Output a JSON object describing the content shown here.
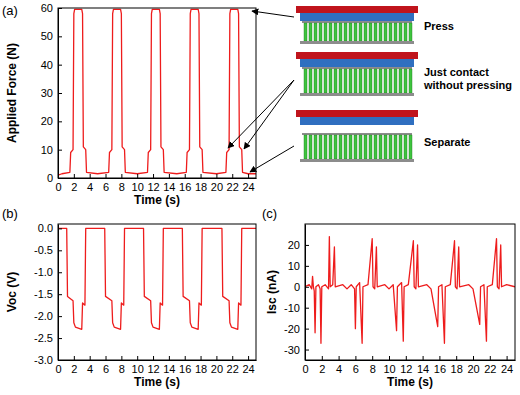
{
  "chart_data": [
    {
      "type": "line",
      "title": "(a)",
      "x_label": "Time (s)",
      "y_label": "Applied Force (N)",
      "color": "#ee1c1c",
      "xlim": [
        0,
        25
      ],
      "xticks": [
        0,
        2,
        4,
        6,
        8,
        10,
        12,
        14,
        16,
        18,
        20,
        22,
        24
      ],
      "ylim": [
        0,
        60
      ],
      "yticks": [
        0,
        10,
        20,
        30,
        40,
        50,
        60
      ],
      "x": [
        0,
        0.5,
        1.5,
        1.6,
        1.9,
        2.0,
        2.1,
        3.0,
        3.1,
        3.2,
        3.5,
        3.6,
        5.0,
        6.4,
        6.5,
        6.8,
        6.9,
        7.0,
        7.9,
        8.0,
        8.1,
        8.4,
        8.5,
        10.0,
        11.3,
        11.4,
        11.7,
        11.8,
        11.9,
        12.8,
        12.9,
        13.0,
        13.3,
        13.4,
        15.0,
        16.2,
        16.3,
        16.6,
        16.7,
        16.8,
        17.7,
        17.8,
        17.9,
        18.2,
        18.3,
        20.0,
        21.2,
        21.3,
        21.6,
        21.7,
        21.8,
        22.7,
        22.8,
        22.9,
        23.2,
        23.3,
        24.0,
        25.0
      ],
      "values": [
        1,
        1.5,
        2,
        9,
        10,
        58,
        59.5,
        59.5,
        58,
        11,
        10,
        2,
        1.5,
        2,
        9,
        10,
        58,
        59.5,
        59.5,
        58,
        11,
        10,
        2,
        1.5,
        2,
        9,
        10,
        58,
        59.5,
        59.5,
        58,
        11,
        10,
        2,
        1.5,
        2,
        9,
        10,
        58,
        59.5,
        59.5,
        58,
        11,
        10,
        2,
        1.5,
        2,
        9,
        10,
        58,
        59.5,
        59.5,
        58,
        11,
        10,
        2,
        1.5,
        1.5
      ],
      "annotations": [
        {
          "lines": [
            "Press"
          ]
        },
        {
          "lines": [
            "Just contact",
            "without pressing"
          ]
        },
        {
          "lines": [
            "Separate"
          ]
        }
      ]
    },
    {
      "type": "line",
      "title": "(b)",
      "x_label": "Time (s)",
      "y_label": "Voc (V)",
      "color": "#ee1c1c",
      "xlim": [
        0,
        25
      ],
      "xticks": [
        0,
        2,
        4,
        6,
        8,
        10,
        12,
        14,
        16,
        18,
        20,
        22,
        24
      ],
      "ylim": [
        -3.0,
        0.1
      ],
      "yticks": [
        {
          "value": -3,
          "label": "-3.0"
        },
        -2.5,
        {
          "value": -2,
          "label": "-2.0"
        },
        -1.5,
        {
          "value": -1,
          "label": "-1.0"
        },
        -0.5,
        {
          "value": 0,
          "label": "0.0"
        }
      ],
      "x": [
        0,
        1.1,
        1.2,
        1.9,
        2.0,
        2.2,
        3.0,
        3.1,
        3.4,
        3.5,
        5.9,
        6.0,
        6.8,
        6.9,
        7.1,
        7.9,
        8.0,
        8.3,
        8.4,
        10.8,
        10.9,
        11.7,
        11.8,
        12.0,
        12.8,
        12.9,
        13.2,
        13.3,
        15.7,
        15.8,
        16.6,
        16.7,
        16.9,
        17.7,
        17.8,
        18.1,
        18.2,
        20.7,
        20.8,
        21.6,
        21.7,
        21.9,
        22.7,
        22.8,
        23.1,
        23.2,
        25.0
      ],
      "values": [
        0,
        0,
        -1.55,
        -1.65,
        -2.15,
        -2.25,
        -2.3,
        -1.7,
        -1.75,
        0,
        0,
        -1.55,
        -1.65,
        -2.15,
        -2.25,
        -2.3,
        -1.7,
        -1.75,
        0,
        0,
        -1.55,
        -1.65,
        -2.15,
        -2.25,
        -2.3,
        -1.7,
        -1.75,
        0,
        0,
        -1.55,
        -1.65,
        -2.15,
        -2.25,
        -2.3,
        -1.7,
        -1.75,
        0,
        0,
        -1.55,
        -1.65,
        -2.15,
        -2.25,
        -2.3,
        -1.7,
        -1.75,
        0,
        0
      ]
    },
    {
      "type": "line",
      "title": "(c)",
      "x_label": "Time (s)",
      "y_label": "Isc (nA)",
      "color": "#ee1c1c",
      "xlim": [
        0,
        25
      ],
      "xticks": [
        0,
        2,
        4,
        6,
        8,
        10,
        12,
        14,
        16,
        18,
        20,
        22,
        24
      ],
      "ylim": [
        -35,
        30
      ],
      "yticks": [
        -30,
        -20,
        -10,
        0,
        10,
        20
      ],
      "x": [
        0,
        0.5,
        0.8,
        0.9,
        1.0,
        1.1,
        1.2,
        1.3,
        1.6,
        1.8,
        1.9,
        2.0,
        2.4,
        2.8,
        2.9,
        3.0,
        3.3,
        3.5,
        3.6,
        4.5,
        5.0,
        5.5,
        5.9,
        6.0,
        6.1,
        6.5,
        6.8,
        6.9,
        7.5,
        8.0,
        8.1,
        8.3,
        8.5,
        8.6,
        9.5,
        10.0,
        10.5,
        10.9,
        11.0,
        11.5,
        11.7,
        11.8,
        12.3,
        12.9,
        13.0,
        13.2,
        13.4,
        13.5,
        14.5,
        15.0,
        15.8,
        15.9,
        16.3,
        16.6,
        16.7,
        17.3,
        17.8,
        17.9,
        18.1,
        18.3,
        18.4,
        19.5,
        20.0,
        20.8,
        20.9,
        21.3,
        21.6,
        21.7,
        22.3,
        22.8,
        22.9,
        23.1,
        23.3,
        23.4,
        24.0,
        25.0
      ],
      "values": [
        0,
        1,
        -1,
        5,
        0,
        -2,
        -22,
        0,
        1,
        -1,
        -27,
        0,
        1,
        -1,
        24,
        0,
        1,
        19,
        0,
        1,
        -1,
        1,
        -1,
        -20,
        0,
        2,
        -27,
        0,
        1,
        23,
        0,
        -1,
        19,
        0,
        1,
        -1,
        1,
        -21,
        0,
        2,
        -26,
        0,
        1,
        22,
        0,
        -1,
        20,
        0,
        1,
        -1,
        -19,
        0,
        1,
        -27,
        0,
        1,
        22,
        0,
        -1,
        19,
        0,
        1,
        -1,
        -18,
        0,
        1,
        -26,
        0,
        1,
        23,
        0,
        -1,
        20,
        0,
        1,
        0
      ]
    }
  ]
}
